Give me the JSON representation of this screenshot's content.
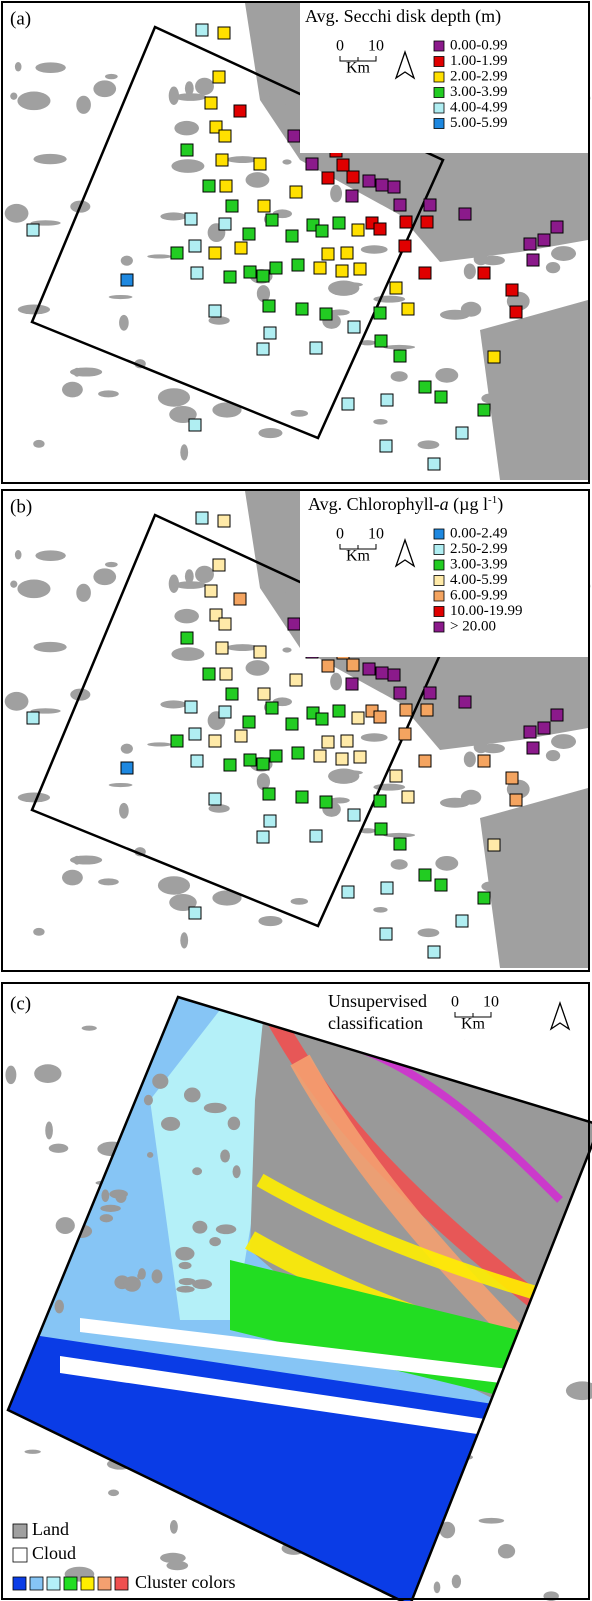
{
  "panels": [
    {
      "label": "(a)",
      "legend": {
        "title": "Avg. Secchi disk depth (m)",
        "items": [
          {
            "label": "0.00-0.99",
            "color": "#8b1a8b"
          },
          {
            "label": "1.00-1.99",
            "color": "#e00000"
          },
          {
            "label": "2.00-2.99",
            "color": "#ffe000"
          },
          {
            "label": "3.00-3.99",
            "color": "#22cc22"
          },
          {
            "label": "4.00-4.99",
            "color": "#b0eef2"
          },
          {
            "label": "5.00-5.99",
            "color": "#1e88e0"
          }
        ]
      },
      "scale": {
        "start": 0,
        "end": 10,
        "unit": "Km"
      }
    },
    {
      "label": "(b)",
      "legend": {
        "title": {
          "before": "Avg. Chlorophyll-",
          "italic": "a",
          "unit": " (µg l",
          "sup": "-1",
          "after": ")"
        },
        "items": [
          {
            "label": "0.00-2.49",
            "color": "#1e88e0"
          },
          {
            "label": "2.50-2.99",
            "color": "#b0eef2"
          },
          {
            "label": "3.00-3.99",
            "color": "#22cc22"
          },
          {
            "label": "4.00-5.99",
            "color": "#ffeaa8"
          },
          {
            "label": "6.00-9.99",
            "color": "#f4a460"
          },
          {
            "label": "10.00-19.99",
            "color": "#e00000"
          },
          {
            "label": "> 20.00",
            "color": "#8b1a8b"
          }
        ]
      },
      "scale": {
        "start": 0,
        "end": 10,
        "unit": "Km"
      }
    },
    {
      "label": "(c)",
      "title": [
        "Unsupervised",
        "classification"
      ],
      "scale": {
        "start": 0,
        "end": 10,
        "unit": "Km"
      },
      "legend": {
        "items": [
          {
            "label": "Land",
            "color": "#a0a0a0"
          },
          {
            "label": "Cloud",
            "color": "#ffffff"
          }
        ],
        "cluster": {
          "label": "Cluster colors",
          "colors": [
            "#0a3ce6",
            "#86c5f5",
            "#b4f0f8",
            "#22dd22",
            "#ffee00",
            "#f4a070",
            "#f05050"
          ]
        }
      }
    }
  ]
}
